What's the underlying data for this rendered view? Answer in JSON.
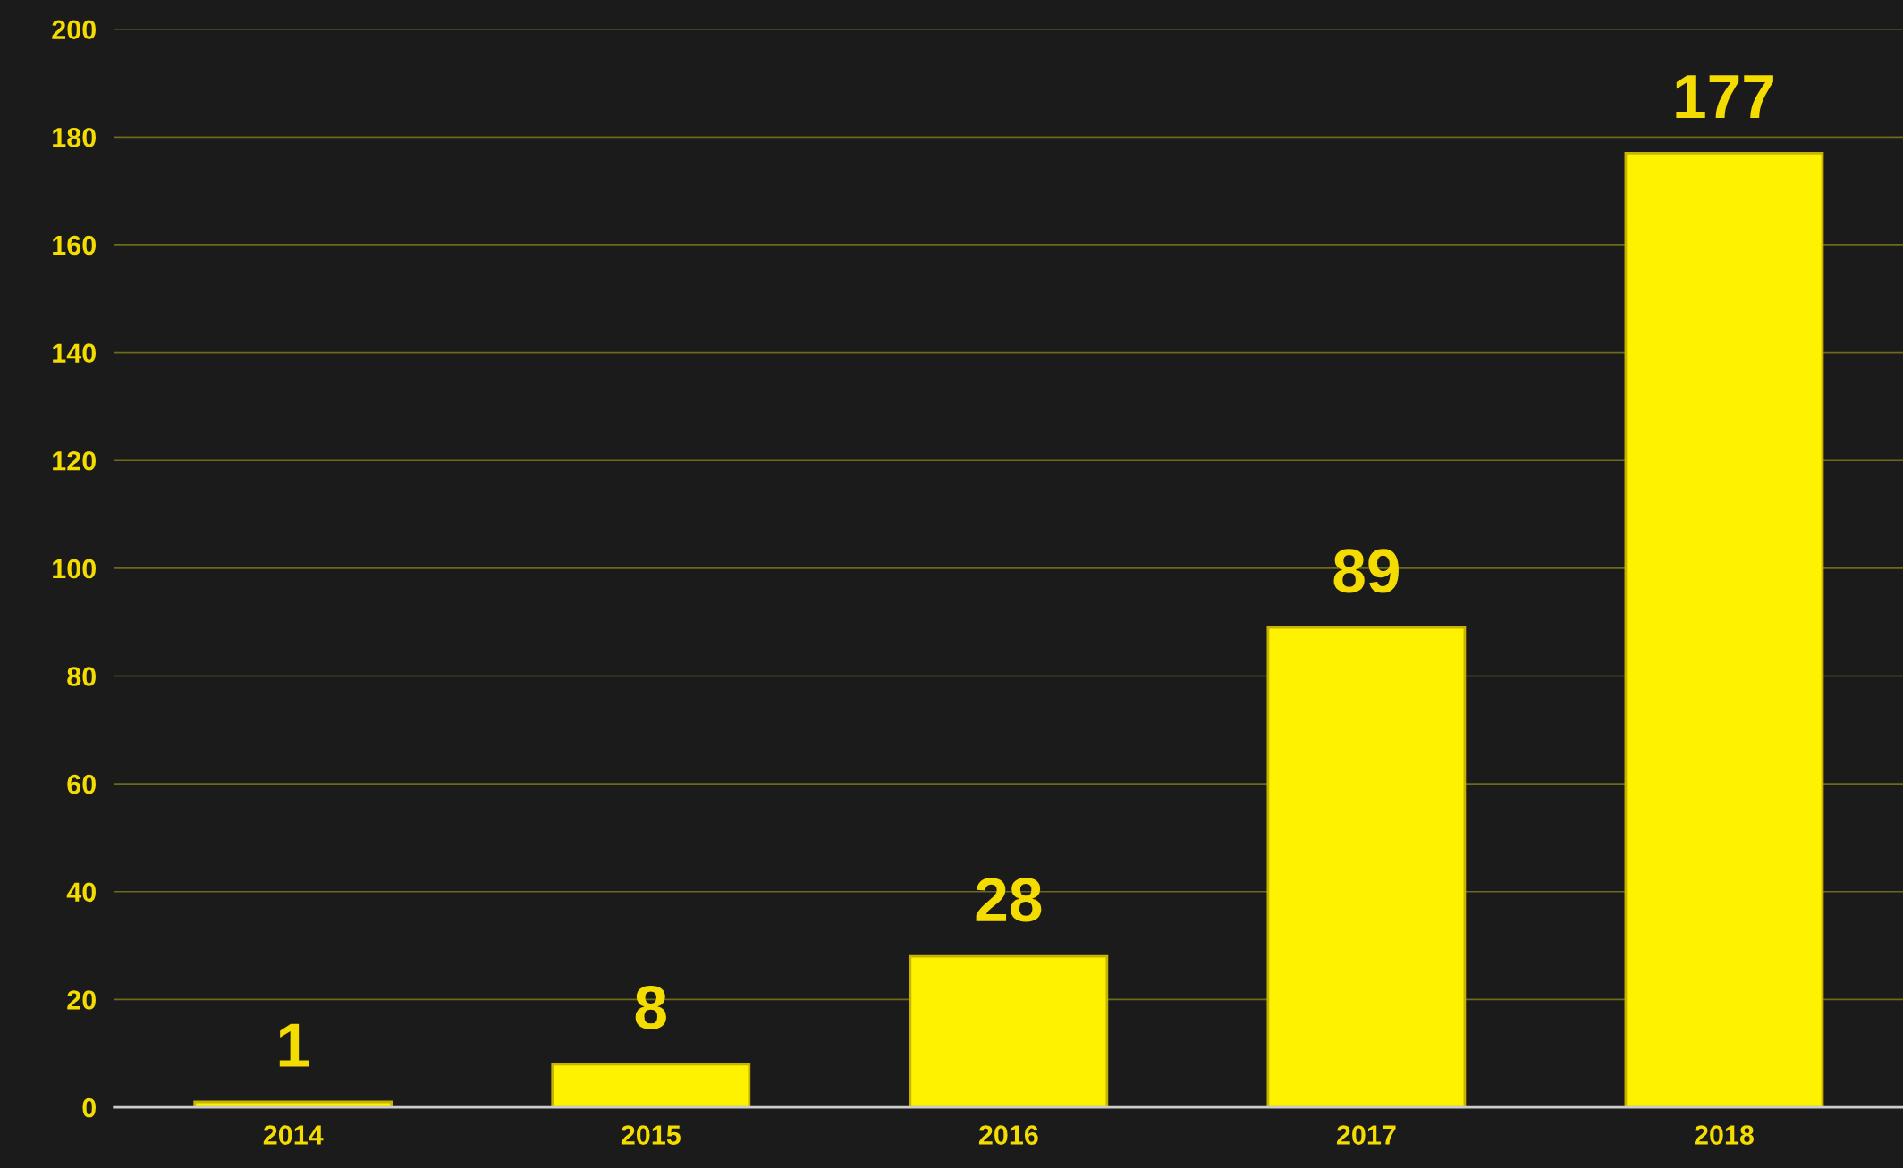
{
  "chart_data": {
    "type": "bar",
    "categories": [
      "2014",
      "2015",
      "2016",
      "2017",
      "2018"
    ],
    "values": [
      1,
      8,
      28,
      89,
      177
    ],
    "color": "#fff200",
    "ylim": [
      0,
      200
    ],
    "yticks": [
      0,
      20,
      40,
      60,
      80,
      100,
      120,
      140,
      160,
      180,
      200
    ],
    "grid": "y",
    "data_labels": true
  }
}
